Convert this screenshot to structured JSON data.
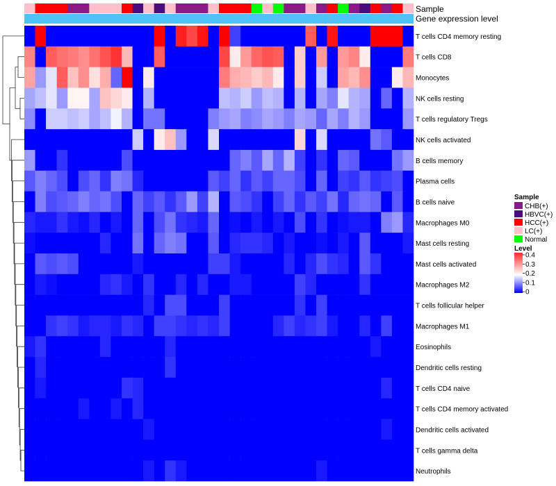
{
  "chart_data": {
    "type": "heatmap",
    "title": "",
    "annotation_tracks": [
      "Sample",
      "Gene expression level"
    ],
    "n_samples": 36,
    "sample_groups": [
      "LC(+)",
      "HCC(+)",
      "HCC(+)",
      "HCC(+)",
      "CHB(+)",
      "CHB(+)",
      "LC(+)",
      "LC(+)",
      "LC(+)",
      "HCC(+)",
      "HBVC(+)",
      "LC(+)",
      "HBVC(+)",
      "LC(+)",
      "CHB(+)",
      "CHB(+)",
      "CHB(+)",
      "LC(+)",
      "HCC(+)",
      "HCC(+)",
      "HCC(+)",
      "Normal",
      "LC(+)",
      "Normal",
      "CHB(+)",
      "CHB(+)",
      "LC(+)",
      "CHB(+)",
      "HCC(+)",
      "Normal",
      "CHB(+)",
      "HBVC(+)",
      "HCC(+)",
      "CHB(+)",
      "HCC(+)",
      "LC(+)"
    ],
    "expression_level_color": "#4FC3F7",
    "group_colors": {
      "CHB(+)": "#8B1A89",
      "HBVC(+)": "#4B0C7E",
      "HCC(+)": "#FF0000",
      "LC(+)": "#FFC0CB",
      "Normal": "#00FF00"
    },
    "legend": {
      "sample_title": "Sample",
      "sample_entries": [
        "CHB(+)",
        "HBVC(+)",
        "HCC(+)",
        "LC(+)",
        "Normal"
      ],
      "level_title": "Level",
      "level_ticks": [
        "0.4",
        "0.3",
        "0.2",
        "0.1",
        "0"
      ]
    },
    "color_scale": {
      "min": 0,
      "mid": 0.2,
      "max": 0.45,
      "low": "#0000FF",
      "mid_color": "#FFFFFF",
      "high": "#FF0000"
    },
    "rows": [
      {
        "label": "T cells CD4 memory resting",
        "values": [
          0.0,
          0.45,
          0.0,
          0.0,
          0.0,
          0.0,
          0.0,
          0.0,
          0.0,
          0.0,
          0.0,
          0.0,
          0.45,
          0.0,
          0.42,
          0.38,
          0.43,
          0.0,
          0.45,
          0.05,
          0.0,
          0.0,
          0.0,
          0.0,
          0.0,
          0.0,
          0.36,
          0.0,
          0.43,
          0.0,
          0.0,
          0.0,
          0.45,
          0.45,
          0.45,
          0.0
        ]
      },
      {
        "label": "T cells CD8",
        "values": [
          0.32,
          0.0,
          0.36,
          0.34,
          0.33,
          0.31,
          0.34,
          0.37,
          0.4,
          0.27,
          0.0,
          0.0,
          0.36,
          0.0,
          0.0,
          0.0,
          0.0,
          0.0,
          0.38,
          0.22,
          0.3,
          0.35,
          0.37,
          0.36,
          0.0,
          0.25,
          0.0,
          0.3,
          0.0,
          0.3,
          0.32,
          0.22,
          0.0,
          0.0,
          0.0,
          0.33
        ]
      },
      {
        "label": "Monocytes",
        "values": [
          0.29,
          0.12,
          0.18,
          0.36,
          0.26,
          0.31,
          0.23,
          0.28,
          0.08,
          0.45,
          0.0,
          0.22,
          0.0,
          0.0,
          0.0,
          0.0,
          0.0,
          0.0,
          0.33,
          0.28,
          0.27,
          0.25,
          0.27,
          0.22,
          0.0,
          0.25,
          0.0,
          0.16,
          0.0,
          0.29,
          0.27,
          0.31,
          0.0,
          0.0,
          0.22,
          0.27
        ]
      },
      {
        "label": "NK cells resting",
        "values": [
          0.13,
          0.15,
          0.18,
          0.12,
          0.21,
          0.21,
          0.13,
          0.26,
          0.24,
          0.22,
          0.0,
          0.14,
          0.0,
          0.0,
          0.0,
          0.0,
          0.0,
          0.0,
          0.15,
          0.14,
          0.16,
          0.12,
          0.15,
          0.14,
          0.0,
          0.14,
          0.0,
          0.13,
          0.1,
          0.18,
          0.14,
          0.13,
          0.0,
          0.08,
          0.0,
          0.14
        ]
      },
      {
        "label": "T cells regulatory  Tregs",
        "values": [
          0.11,
          0.0,
          0.16,
          0.16,
          0.15,
          0.16,
          0.13,
          0.15,
          0.19,
          0.14,
          0.0,
          0.09,
          0.09,
          0.0,
          0.0,
          0.0,
          0.0,
          0.1,
          0.12,
          0.13,
          0.1,
          0.11,
          0.13,
          0.12,
          0.1,
          0.13,
          0.12,
          0.08,
          0.13,
          0.1,
          0.14,
          0.12,
          0.0,
          0.0,
          0.0,
          0.12
        ]
      },
      {
        "label": "NK cells activated",
        "values": [
          0.0,
          0.0,
          0.0,
          0.0,
          0.0,
          0.0,
          0.0,
          0.0,
          0.0,
          0.0,
          0.16,
          0.0,
          0.22,
          0.26,
          0.12,
          0.0,
          0.0,
          0.17,
          0.0,
          0.0,
          0.0,
          0.0,
          0.0,
          0.0,
          0.0,
          0.24,
          0.0,
          0.17,
          0.0,
          0.0,
          0.0,
          0.0,
          0.09,
          0.07,
          0.0,
          0.0
        ]
      },
      {
        "label": "B cells memory",
        "values": [
          0.12,
          0.0,
          0.0,
          0.04,
          0.0,
          0.0,
          0.0,
          0.0,
          0.0,
          0.06,
          0.0,
          0.0,
          0.0,
          0.0,
          0.0,
          0.0,
          0.0,
          0.0,
          0.0,
          0.08,
          0.1,
          0.07,
          0.13,
          0.08,
          0.14,
          0.05,
          0.0,
          0.04,
          0.0,
          0.08,
          0.07,
          0.0,
          0.0,
          0.0,
          0.09,
          0.12
        ]
      },
      {
        "label": "Plasma cells",
        "values": [
          0.07,
          0.1,
          0.08,
          0.06,
          0.0,
          0.06,
          0.08,
          0.04,
          0.1,
          0.09,
          0.03,
          0.0,
          0.0,
          0.0,
          0.0,
          0.0,
          0.0,
          0.07,
          0.05,
          0.08,
          0.04,
          0.07,
          0.05,
          0.08,
          0.08,
          0.06,
          0.0,
          0.08,
          0.0,
          0.05,
          0.04,
          0.07,
          0.04,
          0.05,
          0.06,
          0.0
        ]
      },
      {
        "label": "B cells naive",
        "values": [
          0.0,
          0.1,
          0.06,
          0.07,
          0.08,
          0.1,
          0.08,
          0.09,
          0.06,
          0.0,
          0.08,
          0.05,
          0.07,
          0.04,
          0.07,
          0.12,
          0.05,
          0.14,
          0.0,
          0.07,
          0.06,
          0.04,
          0.0,
          0.05,
          0.08,
          0.04,
          0.07,
          0.05,
          0.09,
          0.03,
          0.08,
          0.09,
          0.08,
          0.0,
          0.07,
          0.0
        ]
      },
      {
        "label": "Macrophages M0",
        "values": [
          0.03,
          0.02,
          0.02,
          0.04,
          0.02,
          0.01,
          0.03,
          0.0,
          0.02,
          0.0,
          0.08,
          0.0,
          0.06,
          0.09,
          0.04,
          0.03,
          0.02,
          0.08,
          0.0,
          0.01,
          0.0,
          0.02,
          0.0,
          0.02,
          0.0,
          0.06,
          0.0,
          0.04,
          0.0,
          0.01,
          0.02,
          0.02,
          0.0,
          0.1,
          0.12,
          0.03
        ]
      },
      {
        "label": "Mast cells resting",
        "values": [
          0.01,
          0.0,
          0.0,
          0.0,
          0.0,
          0.0,
          0.0,
          0.03,
          0.0,
          0.0,
          0.09,
          0.0,
          0.08,
          0.1,
          0.09,
          0.0,
          0.0,
          0.07,
          0.0,
          0.03,
          0.04,
          0.04,
          0.03,
          0.0,
          0.02,
          0.0,
          0.0,
          0.01,
          0.0,
          0.02,
          0.0,
          0.07,
          0.0,
          0.0,
          0.0,
          0.02
        ]
      },
      {
        "label": "Mast cells activated",
        "values": [
          0.0,
          0.07,
          0.06,
          0.07,
          0.06,
          0.0,
          0.0,
          0.0,
          0.0,
          0.0,
          0.02,
          0.0,
          0.0,
          0.0,
          0.0,
          0.0,
          0.0,
          0.05,
          0.05,
          0.02,
          0.0,
          0.0,
          0.0,
          0.0,
          0.03,
          0.0,
          0.03,
          0.06,
          0.04,
          0.03,
          0.0,
          0.07,
          0.04,
          0.0,
          0.0,
          0.0
        ]
      },
      {
        "label": "Macrophages M2",
        "values": [
          0.0,
          0.02,
          0.01,
          0.0,
          0.0,
          0.0,
          0.0,
          0.03,
          0.04,
          0.02,
          0.0,
          0.04,
          0.0,
          0.0,
          0.03,
          0.0,
          0.03,
          0.0,
          0.0,
          0.02,
          0.02,
          0.0,
          0.0,
          0.0,
          0.0,
          0.05,
          0.03,
          0.0,
          0.0,
          0.0,
          0.0,
          0.04,
          0.0,
          0.0,
          0.0,
          0.0
        ]
      },
      {
        "label": "T cells follicular helper",
        "values": [
          0.0,
          0.0,
          0.0,
          0.0,
          0.0,
          0.0,
          0.0,
          0.0,
          0.0,
          0.0,
          0.0,
          0.03,
          0.0,
          0.06,
          0.06,
          0.0,
          0.0,
          0.0,
          0.05,
          0.0,
          0.0,
          0.0,
          0.0,
          0.0,
          0.0,
          0.04,
          0.0,
          0.05,
          0.0,
          0.0,
          0.0,
          0.0,
          0.0,
          0.0,
          0.0,
          0.0
        ]
      },
      {
        "label": "Macrophages M1",
        "values": [
          0.0,
          0.0,
          0.04,
          0.05,
          0.04,
          0.02,
          0.03,
          0.03,
          0.02,
          0.04,
          0.03,
          0.0,
          0.05,
          0.05,
          0.04,
          0.03,
          0.04,
          0.03,
          0.05,
          0.0,
          0.0,
          0.0,
          0.0,
          0.03,
          0.05,
          0.03,
          0.04,
          0.05,
          0.02,
          0.0,
          0.0,
          0.03,
          0.0,
          0.05,
          0.0,
          0.0
        ]
      },
      {
        "label": "Eosinophils",
        "values": [
          0.02,
          0.04,
          0.0,
          0.0,
          0.0,
          0.0,
          0.0,
          0.03,
          0.0,
          0.0,
          0.0,
          0.0,
          0.0,
          0.03,
          0.0,
          0.0,
          0.0,
          0.0,
          0.0,
          0.0,
          0.0,
          0.0,
          0.0,
          0.0,
          0.0,
          0.0,
          0.0,
          0.0,
          0.0,
          0.0,
          0.0,
          0.0,
          0.02,
          0.0,
          0.0,
          0.0
        ]
      },
      {
        "label": "Dendritic cells resting",
        "values": [
          0.0,
          0.03,
          0.0,
          0.0,
          0.0,
          0.0,
          0.0,
          0.0,
          0.0,
          0.0,
          0.0,
          0.0,
          0.0,
          0.04,
          0.0,
          0.0,
          0.0,
          0.0,
          0.0,
          0.0,
          0.0,
          0.0,
          0.0,
          0.0,
          0.0,
          0.0,
          0.0,
          0.0,
          0.0,
          0.0,
          0.0,
          0.0,
          0.0,
          0.0,
          0.0,
          0.0
        ]
      },
      {
        "label": "T cells CD4 naive",
        "values": [
          0.0,
          0.02,
          0.0,
          0.0,
          0.0,
          0.0,
          0.0,
          0.0,
          0.0,
          0.04,
          0.03,
          0.0,
          0.0,
          0.0,
          0.0,
          0.0,
          0.0,
          0.0,
          0.0,
          0.0,
          0.0,
          0.0,
          0.0,
          0.0,
          0.0,
          0.0,
          0.0,
          0.0,
          0.0,
          0.0,
          0.0,
          0.0,
          0.0,
          0.03,
          0.0,
          0.0
        ]
      },
      {
        "label": "T cells CD4 memory activated",
        "values": [
          0.0,
          0.0,
          0.0,
          0.0,
          0.0,
          0.02,
          0.0,
          0.0,
          0.02,
          0.0,
          0.03,
          0.0,
          0.0,
          0.0,
          0.0,
          0.0,
          0.0,
          0.0,
          0.0,
          0.0,
          0.0,
          0.0,
          0.0,
          0.0,
          0.0,
          0.0,
          0.0,
          0.0,
          0.0,
          0.0,
          0.0,
          0.0,
          0.0,
          0.0,
          0.0,
          0.0
        ]
      },
      {
        "label": "Dendritic cells activated",
        "values": [
          0.0,
          0.0,
          0.0,
          0.0,
          0.0,
          0.0,
          0.0,
          0.0,
          0.0,
          0.0,
          0.0,
          0.02,
          0.0,
          0.0,
          0.0,
          0.0,
          0.0,
          0.0,
          0.0,
          0.0,
          0.0,
          0.0,
          0.0,
          0.0,
          0.0,
          0.0,
          0.0,
          0.0,
          0.0,
          0.0,
          0.0,
          0.0,
          0.0,
          0.02,
          0.0,
          0.0
        ]
      },
      {
        "label": "T cells gamma delta",
        "values": [
          0.0,
          0.0,
          0.0,
          0.0,
          0.0,
          0.0,
          0.0,
          0.0,
          0.0,
          0.0,
          0.0,
          0.0,
          0.0,
          0.0,
          0.0,
          0.0,
          0.0,
          0.0,
          0.0,
          0.0,
          0.0,
          0.0,
          0.0,
          0.0,
          0.0,
          0.0,
          0.0,
          0.0,
          0.0,
          0.0,
          0.0,
          0.0,
          0.0,
          0.0,
          0.0,
          0.0
        ]
      },
      {
        "label": "Neutrophils",
        "values": [
          0.0,
          0.0,
          0.0,
          0.0,
          0.0,
          0.0,
          0.0,
          0.0,
          0.0,
          0.0,
          0.0,
          0.02,
          0.0,
          0.04,
          0.02,
          0.0,
          0.0,
          0.0,
          0.0,
          0.0,
          0.0,
          0.0,
          0.0,
          0.0,
          0.0,
          0.0,
          0.0,
          0.02,
          0.0,
          0.0,
          0.0,
          0.0,
          0.0,
          0.0,
          0.0,
          0.0
        ]
      }
    ]
  }
}
